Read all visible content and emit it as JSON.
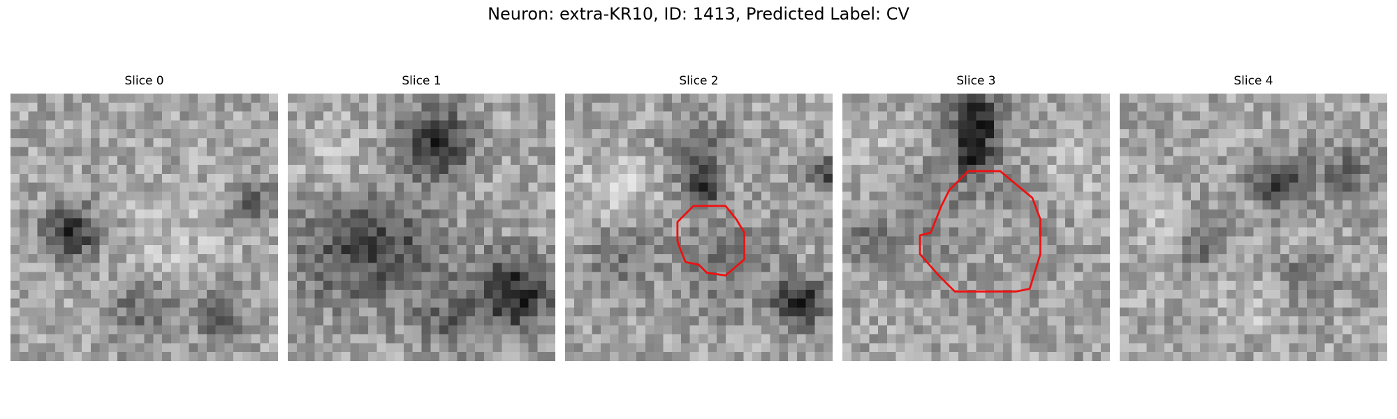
{
  "figure": {
    "title": "Neuron: extra-KR10, ID: 1413, Predicted Label: CV"
  },
  "panels": [
    {
      "title": "Slice 0",
      "seed": 11,
      "dark_blobs": [
        [
          0.22,
          0.52,
          0.1,
          0.85
        ],
        [
          0.5,
          0.8,
          0.12,
          0.4
        ],
        [
          0.78,
          0.82,
          0.1,
          0.45
        ],
        [
          0.9,
          0.4,
          0.08,
          0.4
        ]
      ],
      "light_blobs": [
        [
          0.6,
          0.55,
          0.2,
          0.25
        ]
      ],
      "contour": null
    },
    {
      "title": "Slice 1",
      "seed": 23,
      "dark_blobs": [
        [
          0.55,
          0.18,
          0.13,
          0.85
        ],
        [
          0.2,
          0.58,
          0.22,
          0.45
        ],
        [
          0.85,
          0.75,
          0.14,
          0.85
        ],
        [
          0.45,
          0.55,
          0.22,
          0.4
        ],
        [
          0.6,
          0.85,
          0.12,
          0.35
        ]
      ],
      "light_blobs": [
        [
          0.2,
          0.3,
          0.18,
          0.3
        ],
        [
          0.55,
          0.38,
          0.16,
          0.25
        ]
      ],
      "contour": null
    },
    {
      "title": "Slice 2",
      "seed": 37,
      "dark_blobs": [
        [
          0.52,
          0.36,
          0.07,
          0.7
        ],
        [
          0.48,
          0.2,
          0.12,
          0.45
        ],
        [
          0.88,
          0.78,
          0.09,
          0.9
        ],
        [
          0.2,
          0.6,
          0.12,
          0.35
        ],
        [
          0.98,
          0.3,
          0.07,
          0.6
        ],
        [
          0.6,
          0.65,
          0.2,
          0.3
        ]
      ],
      "light_blobs": [
        [
          0.2,
          0.35,
          0.15,
          0.35
        ]
      ],
      "contour": {
        "color": "#ee1111",
        "points": [
          [
            0.42,
            0.48
          ],
          [
            0.48,
            0.42
          ],
          [
            0.6,
            0.42
          ],
          [
            0.64,
            0.47
          ],
          [
            0.67,
            0.52
          ],
          [
            0.67,
            0.62
          ],
          [
            0.6,
            0.68
          ],
          [
            0.53,
            0.67
          ],
          [
            0.5,
            0.64
          ],
          [
            0.45,
            0.63
          ],
          [
            0.43,
            0.58
          ],
          [
            0.42,
            0.55
          ]
        ]
      }
    },
    {
      "title": "Slice 3",
      "seed": 53,
      "dark_blobs": [
        [
          0.5,
          0.1,
          0.1,
          0.9
        ],
        [
          0.48,
          0.24,
          0.07,
          0.75
        ],
        [
          0.5,
          0.5,
          0.24,
          0.45
        ],
        [
          0.1,
          0.55,
          0.1,
          0.3
        ]
      ],
      "light_blobs": [
        [
          0.52,
          0.53,
          0.17,
          0.7
        ],
        [
          0.1,
          0.2,
          0.12,
          0.3
        ],
        [
          0.85,
          0.3,
          0.12,
          0.3
        ]
      ],
      "contour": {
        "color": "#ee1111",
        "points": [
          [
            0.33,
            0.52
          ],
          [
            0.37,
            0.42
          ],
          [
            0.4,
            0.36
          ],
          [
            0.44,
            0.32
          ],
          [
            0.47,
            0.29
          ],
          [
            0.59,
            0.29
          ],
          [
            0.65,
            0.34
          ],
          [
            0.71,
            0.39
          ],
          [
            0.74,
            0.47
          ],
          [
            0.74,
            0.6
          ],
          [
            0.7,
            0.73
          ],
          [
            0.65,
            0.74
          ],
          [
            0.53,
            0.74
          ],
          [
            0.42,
            0.74
          ],
          [
            0.36,
            0.68
          ],
          [
            0.29,
            0.6
          ],
          [
            0.29,
            0.53
          ]
        ]
      }
    },
    {
      "title": "Slice 4",
      "seed": 71,
      "dark_blobs": [
        [
          0.6,
          0.33,
          0.1,
          0.7
        ],
        [
          0.7,
          0.7,
          0.1,
          0.35
        ],
        [
          0.3,
          0.55,
          0.1,
          0.35
        ],
        [
          0.85,
          0.3,
          0.12,
          0.35
        ]
      ],
      "light_blobs": [
        [
          0.15,
          0.5,
          0.1,
          0.3
        ],
        [
          0.5,
          0.8,
          0.12,
          0.25
        ]
      ],
      "contour": null
    }
  ]
}
